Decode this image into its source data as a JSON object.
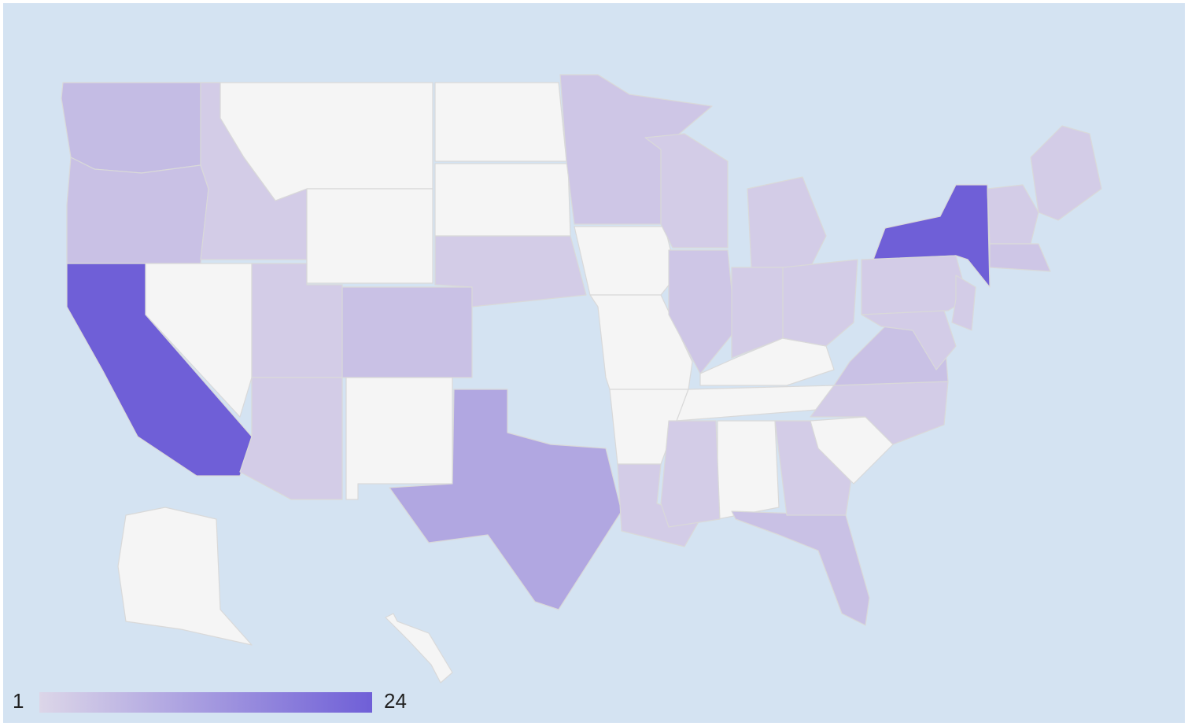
{
  "chart_data": {
    "type": "choropleth",
    "colorlim": [
      1,
      24
    ],
    "colors": [
      "#dcd6e8",
      "#6f5fd7"
    ],
    "nodata_color": "#f5f5f5",
    "background": "#d4e3f2",
    "values": [
      6,
      5,
      24,
      null,
      3,
      null,
      null,
      3,
      5,
      3,
      null,
      null,
      null,
      3,
      10,
      4,
      null,
      null,
      null,
      3,
      3,
      4,
      3,
      3,
      null,
      3,
      null,
      null,
      3,
      5,
      3,
      null,
      3,
      5,
      24,
      3,
      3,
      3,
      3,
      3,
      4,
      null,
      null
    ]
  }
}
